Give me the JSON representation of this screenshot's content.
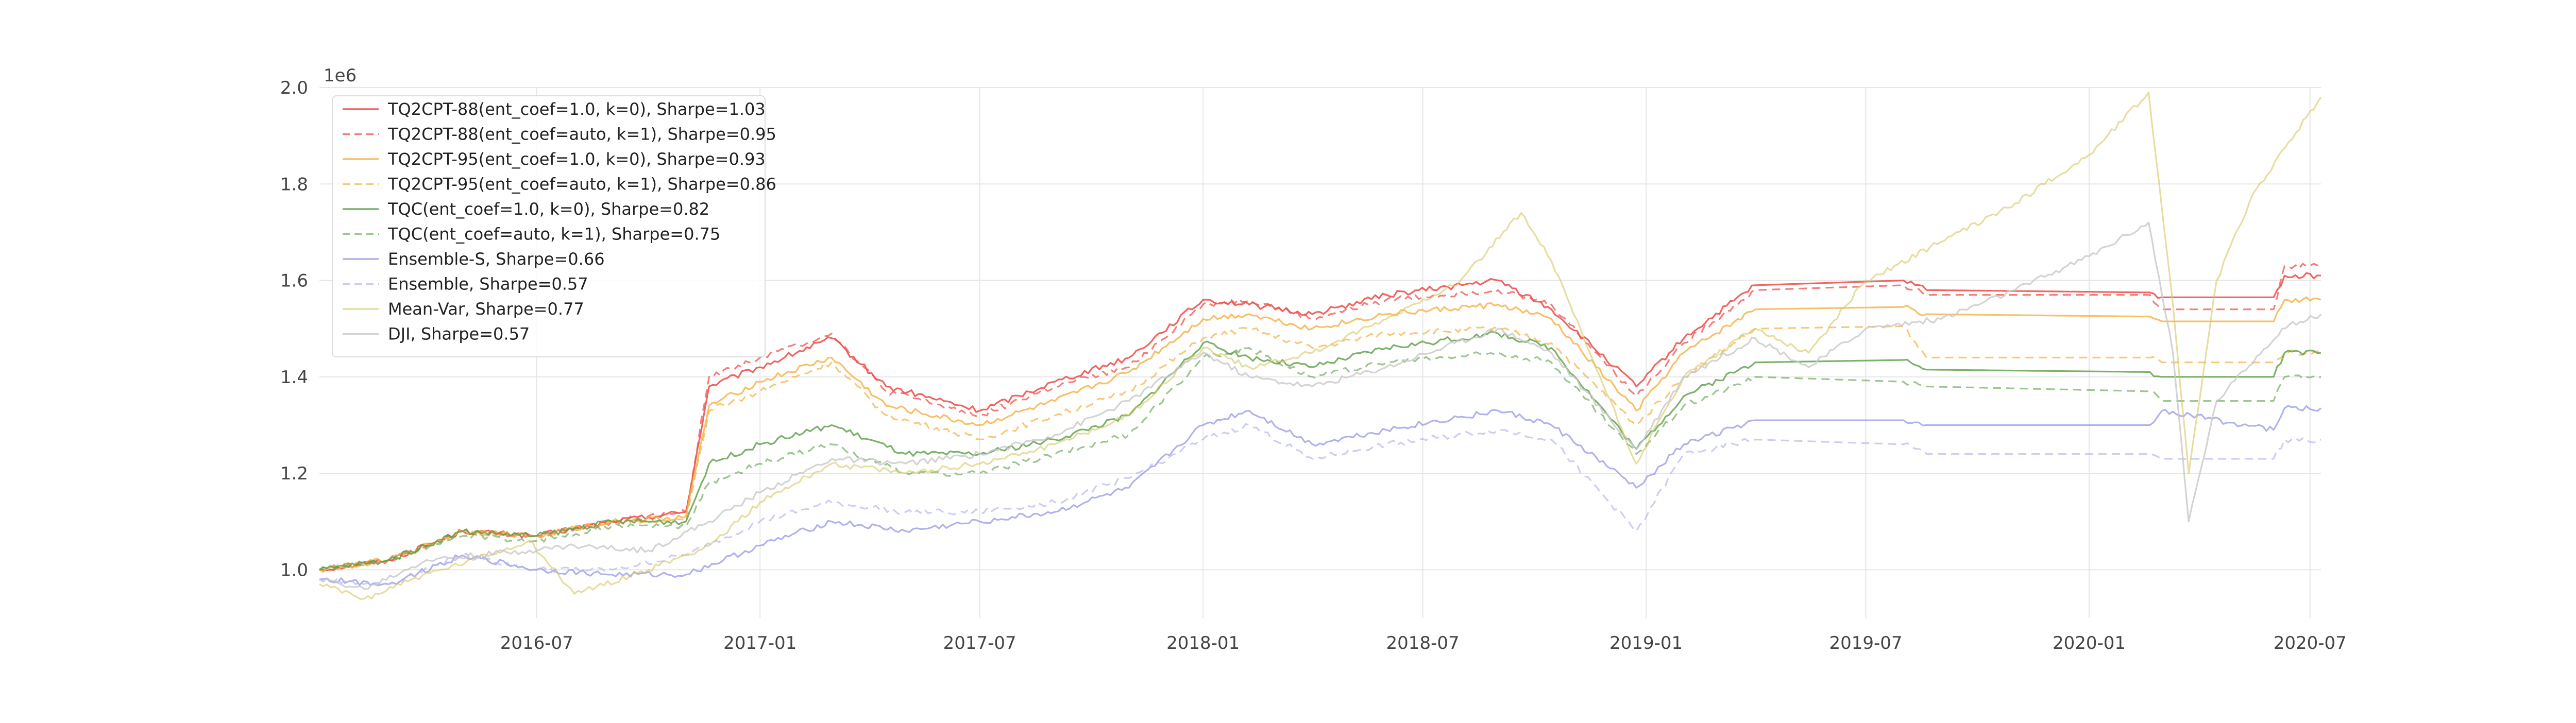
{
  "chart_data": {
    "type": "line",
    "title": "",
    "xlabel": "",
    "ylabel": "",
    "y_offset_label": "1e6",
    "ylim": [
      0.9,
      2.0
    ],
    "xlim": [
      "2016-01-04",
      "2020-07-10"
    ],
    "grid": true,
    "legend_placement": "top-left",
    "x_ticks": [
      "2016-07",
      "2017-01",
      "2017-07",
      "2018-01",
      "2018-07",
      "2019-01",
      "2019-07",
      "2020-01",
      "2020-07"
    ],
    "y_ticks": [
      "1.0",
      "1.2",
      "1.4",
      "1.6",
      "1.8",
      "2.0"
    ],
    "y_tick_values": [
      1.0,
      1.2,
      1.4,
      1.6,
      1.8,
      2.0
    ],
    "series": [
      {
        "name": "TQ2CPT-88(ent_coef=1.0, k=0), Sharpe=1.03",
        "color": "#ef5350",
        "dashed": false,
        "opacity": 0.9,
        "x": [
          "2016-01-04",
          "2016-03-01",
          "2016-05-01",
          "2016-07-01",
          "2016-09-01",
          "2016-11-01",
          "2016-11-20",
          "2017-01-01",
          "2017-03-01",
          "2017-04-15",
          "2017-07-01",
          "2017-09-01",
          "2017-11-01",
          "2018-01-01",
          "2018-02-08",
          "2018-04-01",
          "2018-06-01",
          "2018-09-01",
          "2018-10-15",
          "2018-12-24",
          "2019-02-01",
          "2019-04-01",
          "2019-08-01",
          "2019-08-20",
          "2020-02-20",
          "2020-03-01",
          "2020-06-01",
          "2020-06-10",
          "2020-07-10"
        ],
        "y": [
          1.0,
          1.02,
          1.08,
          1.07,
          1.1,
          1.12,
          1.38,
          1.42,
          1.48,
          1.38,
          1.33,
          1.39,
          1.44,
          1.56,
          1.55,
          1.53,
          1.57,
          1.6,
          1.54,
          1.38,
          1.48,
          1.59,
          1.6,
          1.58,
          1.575,
          1.565,
          1.565,
          1.61,
          1.61
        ]
      },
      {
        "name": "TQ2CPT-88(ent_coef=auto, k=1), Sharpe=0.95",
        "color": "#ef5350",
        "dashed": true,
        "opacity": 0.75,
        "x": [
          "2016-01-04",
          "2016-03-01",
          "2016-05-01",
          "2016-07-01",
          "2016-09-01",
          "2016-11-01",
          "2016-11-20",
          "2017-01-01",
          "2017-03-01",
          "2017-04-15",
          "2017-07-01",
          "2017-09-01",
          "2017-11-01",
          "2018-01-01",
          "2018-02-08",
          "2018-04-01",
          "2018-06-01",
          "2018-09-01",
          "2018-10-15",
          "2018-12-24",
          "2019-02-01",
          "2019-04-01",
          "2019-08-01",
          "2019-08-20",
          "2020-02-20",
          "2020-03-01",
          "2020-06-01",
          "2020-06-10",
          "2020-07-10"
        ],
        "y": [
          1.0,
          1.02,
          1.08,
          1.07,
          1.1,
          1.12,
          1.4,
          1.44,
          1.49,
          1.37,
          1.32,
          1.38,
          1.42,
          1.55,
          1.56,
          1.52,
          1.56,
          1.58,
          1.55,
          1.36,
          1.47,
          1.58,
          1.59,
          1.57,
          1.57,
          1.54,
          1.54,
          1.63,
          1.63
        ]
      },
      {
        "name": "TQ2CPT-95(ent_coef=1.0, k=0), Sharpe=0.93",
        "color": "#f5b041",
        "dashed": false,
        "opacity": 0.8,
        "x": [
          "2016-01-04",
          "2016-03-01",
          "2016-05-01",
          "2016-07-01",
          "2016-09-01",
          "2016-11-01",
          "2016-11-20",
          "2017-01-01",
          "2017-03-01",
          "2017-04-15",
          "2017-07-01",
          "2017-09-01",
          "2017-11-01",
          "2018-01-01",
          "2018-02-08",
          "2018-04-01",
          "2018-06-01",
          "2018-09-01",
          "2018-10-15",
          "2018-12-24",
          "2019-02-01",
          "2019-04-01",
          "2019-08-01",
          "2019-08-20",
          "2020-02-20",
          "2020-03-01",
          "2020-06-01",
          "2020-06-10",
          "2020-07-10"
        ],
        "y": [
          1.0,
          1.02,
          1.08,
          1.07,
          1.1,
          1.11,
          1.34,
          1.39,
          1.44,
          1.34,
          1.3,
          1.35,
          1.41,
          1.52,
          1.53,
          1.5,
          1.53,
          1.55,
          1.52,
          1.33,
          1.45,
          1.54,
          1.545,
          1.53,
          1.525,
          1.515,
          1.515,
          1.56,
          1.56
        ]
      },
      {
        "name": "TQ2CPT-95(ent_coef=auto, k=1), Sharpe=0.86",
        "color": "#f5b041",
        "dashed": true,
        "opacity": 0.7,
        "x": [
          "2016-01-04",
          "2016-03-01",
          "2016-05-01",
          "2016-07-01",
          "2016-09-01",
          "2016-11-01",
          "2016-11-20",
          "2017-01-01",
          "2017-03-01",
          "2017-04-15",
          "2017-07-01",
          "2017-09-01",
          "2017-11-01",
          "2018-01-01",
          "2018-02-08",
          "2018-04-01",
          "2018-06-01",
          "2018-09-01",
          "2018-10-15",
          "2018-12-24",
          "2019-02-01",
          "2019-04-01",
          "2019-08-01",
          "2019-08-20",
          "2020-02-20",
          "2020-03-01",
          "2020-06-01",
          "2020-06-10",
          "2020-07-10"
        ],
        "y": [
          1.0,
          1.02,
          1.08,
          1.07,
          1.1,
          1.1,
          1.33,
          1.37,
          1.43,
          1.32,
          1.27,
          1.32,
          1.37,
          1.48,
          1.5,
          1.46,
          1.49,
          1.5,
          1.47,
          1.3,
          1.4,
          1.5,
          1.505,
          1.44,
          1.44,
          1.43,
          1.43,
          1.45,
          1.45
        ]
      },
      {
        "name": "TQC(ent_coef=1.0, k=0), Sharpe=0.82",
        "color": "#5b9e45",
        "dashed": false,
        "opacity": 0.8,
        "x": [
          "2016-01-04",
          "2016-03-01",
          "2016-05-01",
          "2016-07-01",
          "2016-09-01",
          "2016-11-01",
          "2016-11-20",
          "2017-01-01",
          "2017-03-01",
          "2017-05-01",
          "2017-07-01",
          "2017-09-01",
          "2017-11-01",
          "2018-01-01",
          "2018-02-08",
          "2018-04-01",
          "2018-06-01",
          "2018-09-01",
          "2018-10-15",
          "2018-12-24",
          "2019-02-01",
          "2019-04-01",
          "2019-08-01",
          "2019-08-20",
          "2020-02-20",
          "2020-03-01",
          "2020-06-01",
          "2020-06-10",
          "2020-07-10"
        ],
        "y": [
          1.0,
          1.02,
          1.08,
          1.07,
          1.1,
          1.1,
          1.22,
          1.26,
          1.3,
          1.24,
          1.24,
          1.27,
          1.32,
          1.47,
          1.44,
          1.42,
          1.46,
          1.49,
          1.46,
          1.25,
          1.36,
          1.43,
          1.435,
          1.415,
          1.41,
          1.4,
          1.4,
          1.45,
          1.45
        ]
      },
      {
        "name": "TQC(ent_coef=auto, k=1), Sharpe=0.75",
        "color": "#5b9e45",
        "dashed": true,
        "opacity": 0.6,
        "x": [
          "2016-01-04",
          "2016-03-01",
          "2016-05-01",
          "2016-07-01",
          "2016-09-01",
          "2016-11-01",
          "2016-11-20",
          "2017-01-01",
          "2017-03-01",
          "2017-05-01",
          "2017-07-01",
          "2017-09-01",
          "2017-11-01",
          "2018-01-01",
          "2018-02-08",
          "2018-04-01",
          "2018-06-01",
          "2018-09-01",
          "2018-10-15",
          "2018-12-24",
          "2019-02-01",
          "2019-04-01",
          "2019-08-01",
          "2019-08-20",
          "2020-02-20",
          "2020-03-01",
          "2020-06-01",
          "2020-06-10",
          "2020-07-10"
        ],
        "y": [
          1.0,
          1.02,
          1.07,
          1.06,
          1.09,
          1.09,
          1.18,
          1.22,
          1.26,
          1.2,
          1.2,
          1.24,
          1.28,
          1.44,
          1.46,
          1.4,
          1.43,
          1.45,
          1.43,
          1.24,
          1.34,
          1.4,
          1.39,
          1.38,
          1.37,
          1.35,
          1.35,
          1.4,
          1.4
        ]
      },
      {
        "name": "Ensemble-S, Sharpe=0.66",
        "color": "#9090e6",
        "dashed": false,
        "opacity": 0.7,
        "x": [
          "2016-01-04",
          "2016-03-01",
          "2016-05-01",
          "2016-07-01",
          "2016-09-01",
          "2016-11-01",
          "2017-01-01",
          "2017-03-01",
          "2017-05-01",
          "2017-07-01",
          "2017-09-01",
          "2017-11-01",
          "2018-01-01",
          "2018-02-08",
          "2018-04-01",
          "2018-06-01",
          "2018-09-01",
          "2018-10-15",
          "2018-12-24",
          "2019-02-01",
          "2019-04-01",
          "2019-08-01",
          "2019-08-20",
          "2020-02-20",
          "2020-03-01",
          "2020-06-01",
          "2020-06-10",
          "2020-07-10"
        ],
        "y": [
          0.98,
          0.97,
          1.03,
          1.0,
          0.99,
          0.99,
          1.05,
          1.1,
          1.08,
          1.1,
          1.12,
          1.17,
          1.3,
          1.33,
          1.26,
          1.29,
          1.33,
          1.3,
          1.17,
          1.26,
          1.31,
          1.31,
          1.3,
          1.3,
          1.33,
          1.29,
          1.335,
          1.335
        ]
      },
      {
        "name": "Ensemble, Sharpe=0.57",
        "color": "#b8b8f0",
        "dashed": true,
        "opacity": 0.7,
        "x": [
          "2016-01-04",
          "2016-03-01",
          "2016-05-01",
          "2016-07-01",
          "2016-09-01",
          "2016-11-01",
          "2017-01-01",
          "2017-03-01",
          "2017-05-01",
          "2017-07-01",
          "2017-09-01",
          "2017-11-01",
          "2018-01-01",
          "2018-02-08",
          "2018-04-01",
          "2018-06-01",
          "2018-09-01",
          "2018-10-15",
          "2018-12-24",
          "2019-02-01",
          "2019-04-01",
          "2019-08-01",
          "2019-08-20",
          "2020-02-20",
          "2020-03-01",
          "2020-06-01",
          "2020-06-10",
          "2020-07-10"
        ],
        "y": [
          0.98,
          0.97,
          1.03,
          1.0,
          1.0,
          1.03,
          1.1,
          1.14,
          1.12,
          1.12,
          1.14,
          1.19,
          1.27,
          1.3,
          1.23,
          1.26,
          1.29,
          1.27,
          1.08,
          1.24,
          1.27,
          1.26,
          1.24,
          1.24,
          1.23,
          1.23,
          1.27,
          1.27
        ]
      },
      {
        "name": "Mean-Var, Sharpe=0.77",
        "color": "#d6c760",
        "dashed": false,
        "opacity": 0.6,
        "x": [
          "2016-01-04",
          "2016-02-10",
          "2016-03-20",
          "2016-05-10",
          "2016-06-25",
          "2016-08-01",
          "2016-10-01",
          "2016-11-20",
          "2017-01-01",
          "2017-03-01",
          "2017-05-01",
          "2017-07-01",
          "2017-09-01",
          "2017-11-01",
          "2018-01-01",
          "2018-02-08",
          "2018-04-01",
          "2018-06-01",
          "2018-08-01",
          "2018-09-20",
          "2018-10-15",
          "2018-12-24",
          "2019-02-01",
          "2019-04-01",
          "2019-05-15",
          "2019-07-01",
          "2019-09-01",
          "2019-11-01",
          "2020-01-01",
          "2020-02-19",
          "2020-03-10",
          "2020-03-23",
          "2020-04-15",
          "2020-05-15",
          "2020-07-10"
        ],
        "y": [
          0.97,
          0.94,
          0.98,
          1.02,
          1.06,
          0.95,
          1.0,
          1.05,
          1.14,
          1.22,
          1.2,
          1.22,
          1.26,
          1.32,
          1.46,
          1.42,
          1.45,
          1.52,
          1.6,
          1.74,
          1.64,
          1.22,
          1.4,
          1.5,
          1.45,
          1.6,
          1.68,
          1.76,
          1.86,
          1.99,
          1.55,
          1.2,
          1.6,
          1.78,
          1.98
        ]
      },
      {
        "name": "DJI, Sharpe=0.57",
        "color": "#c8c8c8",
        "dashed": false,
        "opacity": 0.8,
        "x": [
          "2016-01-04",
          "2016-02-10",
          "2016-04-01",
          "2016-06-25",
          "2016-08-01",
          "2016-10-01",
          "2016-11-20",
          "2017-01-01",
          "2017-03-01",
          "2017-05-01",
          "2017-07-01",
          "2017-09-01",
          "2017-11-01",
          "2018-01-01",
          "2018-02-08",
          "2018-04-01",
          "2018-06-01",
          "2018-09-01",
          "2018-10-15",
          "2018-12-24",
          "2019-02-01",
          "2019-04-01",
          "2019-05-15",
          "2019-07-01",
          "2019-09-01",
          "2019-11-01",
          "2020-01-01",
          "2020-02-19",
          "2020-03-10",
          "2020-03-23",
          "2020-04-15",
          "2020-06-08",
          "2020-07-10"
        ],
        "y": [
          0.98,
          0.96,
          1.02,
          1.04,
          1.05,
          1.04,
          1.1,
          1.16,
          1.23,
          1.22,
          1.24,
          1.28,
          1.35,
          1.45,
          1.4,
          1.38,
          1.42,
          1.5,
          1.45,
          1.25,
          1.4,
          1.48,
          1.42,
          1.5,
          1.52,
          1.58,
          1.65,
          1.72,
          1.45,
          1.1,
          1.35,
          1.5,
          1.53
        ]
      }
    ]
  }
}
